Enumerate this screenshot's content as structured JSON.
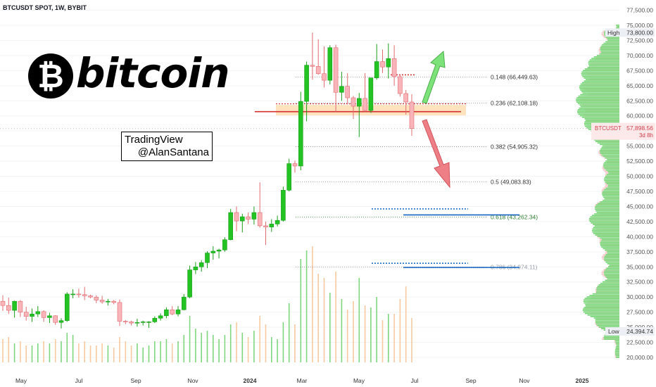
{
  "symbol_title": "BTCUSDT SPOT, 1W, BYBIT",
  "logo": {
    "symbol": "₿",
    "text": "bitcoin"
  },
  "watermark": {
    "line1": "TradingView",
    "line2": "@AlanSantana"
  },
  "colors": {
    "up": "#22c322",
    "down": "#f8b4b8",
    "up_border": "#1b9e1b",
    "down_border": "#e06c72",
    "vol_up": "#7fd67f",
    "vol_down": "#f7c9a0",
    "fib_line": "#8a8a8a",
    "fib_golden": "#2e7d32",
    "support_line": "#1565c0",
    "resistance_red": "#d32f2f",
    "zone_fill": "#ffd8a8",
    "arrow_up": "#7ee27a",
    "arrow_down": "#ef7f86",
    "profile_green": "#6ed36e",
    "profile_pink": "#f7c3c6"
  },
  "chart_data": {
    "type": "candlestick",
    "title": "BTCUSDT SPOT, 1W, BYBIT",
    "interval": "1W",
    "ylim": [
      18000,
      78000
    ],
    "y_axis_ticks": [
      "77,500.00",
      "75,000.00",
      "72,500.00",
      "70,000.00",
      "67,500.00",
      "65,000.00",
      "62,500.00",
      "60,000.00",
      "57,500.00",
      "55,000.00",
      "52,500.00",
      "50,000.00",
      "47,500.00",
      "45,000.00",
      "42,500.00",
      "40,000.00",
      "37,500.00",
      "35,000.00",
      "32,500.00",
      "30,000.00",
      "27,500.00",
      "25,000.00",
      "22,500.00",
      "20,000.00"
    ],
    "x_axis_ticks": [
      "May",
      "Jul",
      "Sep",
      "Nov",
      "2024",
      "Mar",
      "May",
      "Jul",
      "Sep",
      "Nov",
      "2025"
    ],
    "x_ticks_bold": [
      "2024",
      "2025"
    ],
    "candles": [
      {
        "o": 29300,
        "h": 30300,
        "l": 27700,
        "c": 28600
      },
      {
        "o": 28600,
        "h": 29900,
        "l": 27200,
        "c": 27800
      },
      {
        "o": 27800,
        "h": 29400,
        "l": 26600,
        "c": 29300
      },
      {
        "o": 29300,
        "h": 29500,
        "l": 26700,
        "c": 27500
      },
      {
        "o": 27500,
        "h": 28400,
        "l": 26100,
        "c": 26800
      },
      {
        "o": 26800,
        "h": 28100,
        "l": 25900,
        "c": 27200
      },
      {
        "o": 27200,
        "h": 28500,
        "l": 26700,
        "c": 27600
      },
      {
        "o": 27600,
        "h": 27800,
        "l": 25900,
        "c": 26600
      },
      {
        "o": 26600,
        "h": 27400,
        "l": 25700,
        "c": 26900
      },
      {
        "o": 26900,
        "h": 27000,
        "l": 25400,
        "c": 25800
      },
      {
        "o": 25800,
        "h": 26500,
        "l": 24800,
        "c": 26100
      },
      {
        "o": 26100,
        "h": 30800,
        "l": 25900,
        "c": 30500
      },
      {
        "o": 30500,
        "h": 31300,
        "l": 29800,
        "c": 30500
      },
      {
        "o": 30500,
        "h": 31400,
        "l": 29900,
        "c": 30400
      },
      {
        "o": 30400,
        "h": 31700,
        "l": 29500,
        "c": 30200
      },
      {
        "o": 30200,
        "h": 30400,
        "l": 29800,
        "c": 30000
      },
      {
        "o": 30000,
        "h": 30300,
        "l": 29000,
        "c": 29500
      },
      {
        "o": 29500,
        "h": 30200,
        "l": 28900,
        "c": 29200
      },
      {
        "o": 29200,
        "h": 29700,
        "l": 28600,
        "c": 29300
      },
      {
        "o": 29300,
        "h": 29500,
        "l": 28800,
        "c": 29100
      },
      {
        "o": 29100,
        "h": 29600,
        "l": 25200,
        "c": 26000
      },
      {
        "o": 26000,
        "h": 26200,
        "l": 25500,
        "c": 25900
      },
      {
        "o": 25900,
        "h": 26100,
        "l": 25300,
        "c": 25700
      },
      {
        "o": 25700,
        "h": 26400,
        "l": 25100,
        "c": 25800
      },
      {
        "o": 25800,
        "h": 26100,
        "l": 25300,
        "c": 25900
      },
      {
        "o": 25900,
        "h": 26000,
        "l": 24900,
        "c": 25900
      },
      {
        "o": 25900,
        "h": 26800,
        "l": 25700,
        "c": 26500
      },
      {
        "o": 26500,
        "h": 27300,
        "l": 26100,
        "c": 26900
      },
      {
        "o": 26900,
        "h": 28300,
        "l": 26500,
        "c": 27900
      },
      {
        "o": 27900,
        "h": 28500,
        "l": 27000,
        "c": 27200
      },
      {
        "o": 27200,
        "h": 28500,
        "l": 26800,
        "c": 27900
      },
      {
        "o": 27900,
        "h": 30500,
        "l": 27800,
        "c": 30000
      },
      {
        "o": 30000,
        "h": 35200,
        "l": 29800,
        "c": 34500
      },
      {
        "o": 34500,
        "h": 35800,
        "l": 33800,
        "c": 35000
      },
      {
        "o": 35000,
        "h": 36100,
        "l": 34200,
        "c": 35700
      },
      {
        "o": 35700,
        "h": 37600,
        "l": 34800,
        "c": 37300
      },
      {
        "o": 37300,
        "h": 38400,
        "l": 36200,
        "c": 37600
      },
      {
        "o": 37600,
        "h": 38000,
        "l": 36400,
        "c": 37800
      },
      {
        "o": 37800,
        "h": 39900,
        "l": 37500,
        "c": 39500
      },
      {
        "o": 39500,
        "h": 44600,
        "l": 39400,
        "c": 44000
      },
      {
        "o": 44000,
        "h": 45000,
        "l": 40900,
        "c": 42600
      },
      {
        "o": 42600,
        "h": 43800,
        "l": 40700,
        "c": 43300
      },
      {
        "o": 43300,
        "h": 44000,
        "l": 42100,
        "c": 42900
      },
      {
        "o": 42900,
        "h": 45000,
        "l": 42000,
        "c": 44000
      },
      {
        "o": 44000,
        "h": 49000,
        "l": 41500,
        "c": 41800
      },
      {
        "o": 41800,
        "h": 42500,
        "l": 38600,
        "c": 41600
      },
      {
        "o": 41600,
        "h": 42900,
        "l": 40800,
        "c": 42100
      },
      {
        "o": 42100,
        "h": 43500,
        "l": 41700,
        "c": 42700
      },
      {
        "o": 42700,
        "h": 48300,
        "l": 42500,
        "c": 47700
      },
      {
        "o": 47700,
        "h": 52900,
        "l": 47500,
        "c": 52100
      },
      {
        "o": 52100,
        "h": 52600,
        "l": 50600,
        "c": 51700
      },
      {
        "o": 51700,
        "h": 64000,
        "l": 51000,
        "c": 62400
      },
      {
        "o": 62400,
        "h": 69000,
        "l": 59100,
        "c": 68400
      },
      {
        "o": 68400,
        "h": 73800,
        "l": 66000,
        "c": 68200
      },
      {
        "o": 68200,
        "h": 72700,
        "l": 66800,
        "c": 67000
      },
      {
        "o": 67000,
        "h": 71500,
        "l": 64700,
        "c": 65900
      },
      {
        "o": 65900,
        "h": 71700,
        "l": 65200,
        "c": 71300
      },
      {
        "o": 71300,
        "h": 71800,
        "l": 60700,
        "c": 63900
      },
      {
        "o": 63900,
        "h": 67300,
        "l": 62500,
        "c": 64900
      },
      {
        "o": 64900,
        "h": 67100,
        "l": 61900,
        "c": 63000
      },
      {
        "o": 63000,
        "h": 63300,
        "l": 59500,
        "c": 61600
      },
      {
        "o": 61600,
        "h": 63800,
        "l": 56500,
        "c": 62900
      },
      {
        "o": 62900,
        "h": 67100,
        "l": 60700,
        "c": 60900
      },
      {
        "o": 60900,
        "h": 66200,
        "l": 60500,
        "c": 66300
      },
      {
        "o": 66300,
        "h": 71900,
        "l": 66000,
        "c": 69000
      },
      {
        "o": 69000,
        "h": 71000,
        "l": 67100,
        "c": 68100
      },
      {
        "o": 68100,
        "h": 72000,
        "l": 66200,
        "c": 69500
      },
      {
        "o": 69500,
        "h": 71700,
        "l": 65000,
        "c": 66500
      },
      {
        "o": 66500,
        "h": 66800,
        "l": 63200,
        "c": 63700
      },
      {
        "o": 63700,
        "h": 64300,
        "l": 60200,
        "c": 62300
      },
      {
        "o": 62300,
        "h": 63600,
        "l": 56700,
        "c": 57900
      }
    ],
    "volumes": [
      0.11,
      0.12,
      0.09,
      0.1,
      0.08,
      0.08,
      0.09,
      0.1,
      0.09,
      0.11,
      0.1,
      0.14,
      0.13,
      0.09,
      0.1,
      0.08,
      0.08,
      0.09,
      0.08,
      0.07,
      0.12,
      0.1,
      0.08,
      0.09,
      0.07,
      0.08,
      0.1,
      0.1,
      0.11,
      0.09,
      0.1,
      0.13,
      0.22,
      0.16,
      0.14,
      0.15,
      0.13,
      0.11,
      0.13,
      0.18,
      0.19,
      0.14,
      0.12,
      0.15,
      0.22,
      0.18,
      0.12,
      0.11,
      0.19,
      0.28,
      0.18,
      0.49,
      0.53,
      0.55,
      0.42,
      0.4,
      0.33,
      0.43,
      0.3,
      0.25,
      0.29,
      0.4,
      0.27,
      0.26,
      0.31,
      0.2,
      0.23,
      0.23,
      0.3,
      0.36,
      0.21
    ],
    "fib_levels": [
      {
        "ratio": "0.148",
        "label": "0.148 (66,449.63)",
        "value": 66449.63
      },
      {
        "ratio": "0.236",
        "label": "0.236 (62,108.18)",
        "value": 62108.18
      },
      {
        "ratio": "0.382",
        "label": "0.382 (54,905.32)",
        "value": 54905.32
      },
      {
        "ratio": "0.5",
        "label": "0.5 (49,083.83)",
        "value": 49083.83
      },
      {
        "ratio": "0.618",
        "label": "0.618 (43,262.34)",
        "value": 43262.34
      },
      {
        "ratio": "0.786",
        "label": "0.786 (34,974.11)",
        "value": 34974.11
      }
    ],
    "horizontal_lines": [
      {
        "value": 60700,
        "color": "red"
      },
      {
        "value": 43600,
        "color": "blue"
      },
      {
        "value": 34900,
        "color": "blue"
      }
    ],
    "dotted_lines": [
      {
        "value": 66800,
        "color": "red"
      },
      {
        "value": 44600,
        "color": "blue"
      },
      {
        "value": 35600,
        "color": "blue"
      }
    ],
    "zone": {
      "low": 60100,
      "high": 61800
    },
    "high_marker": {
      "label": "High",
      "value": "73,800.00"
    },
    "low_marker": {
      "label": "Low",
      "value": "24,394.74"
    },
    "last_price": {
      "symbol": "BTCUSDT",
      "value": "57,898.56",
      "countdown": "3d 8h"
    }
  }
}
